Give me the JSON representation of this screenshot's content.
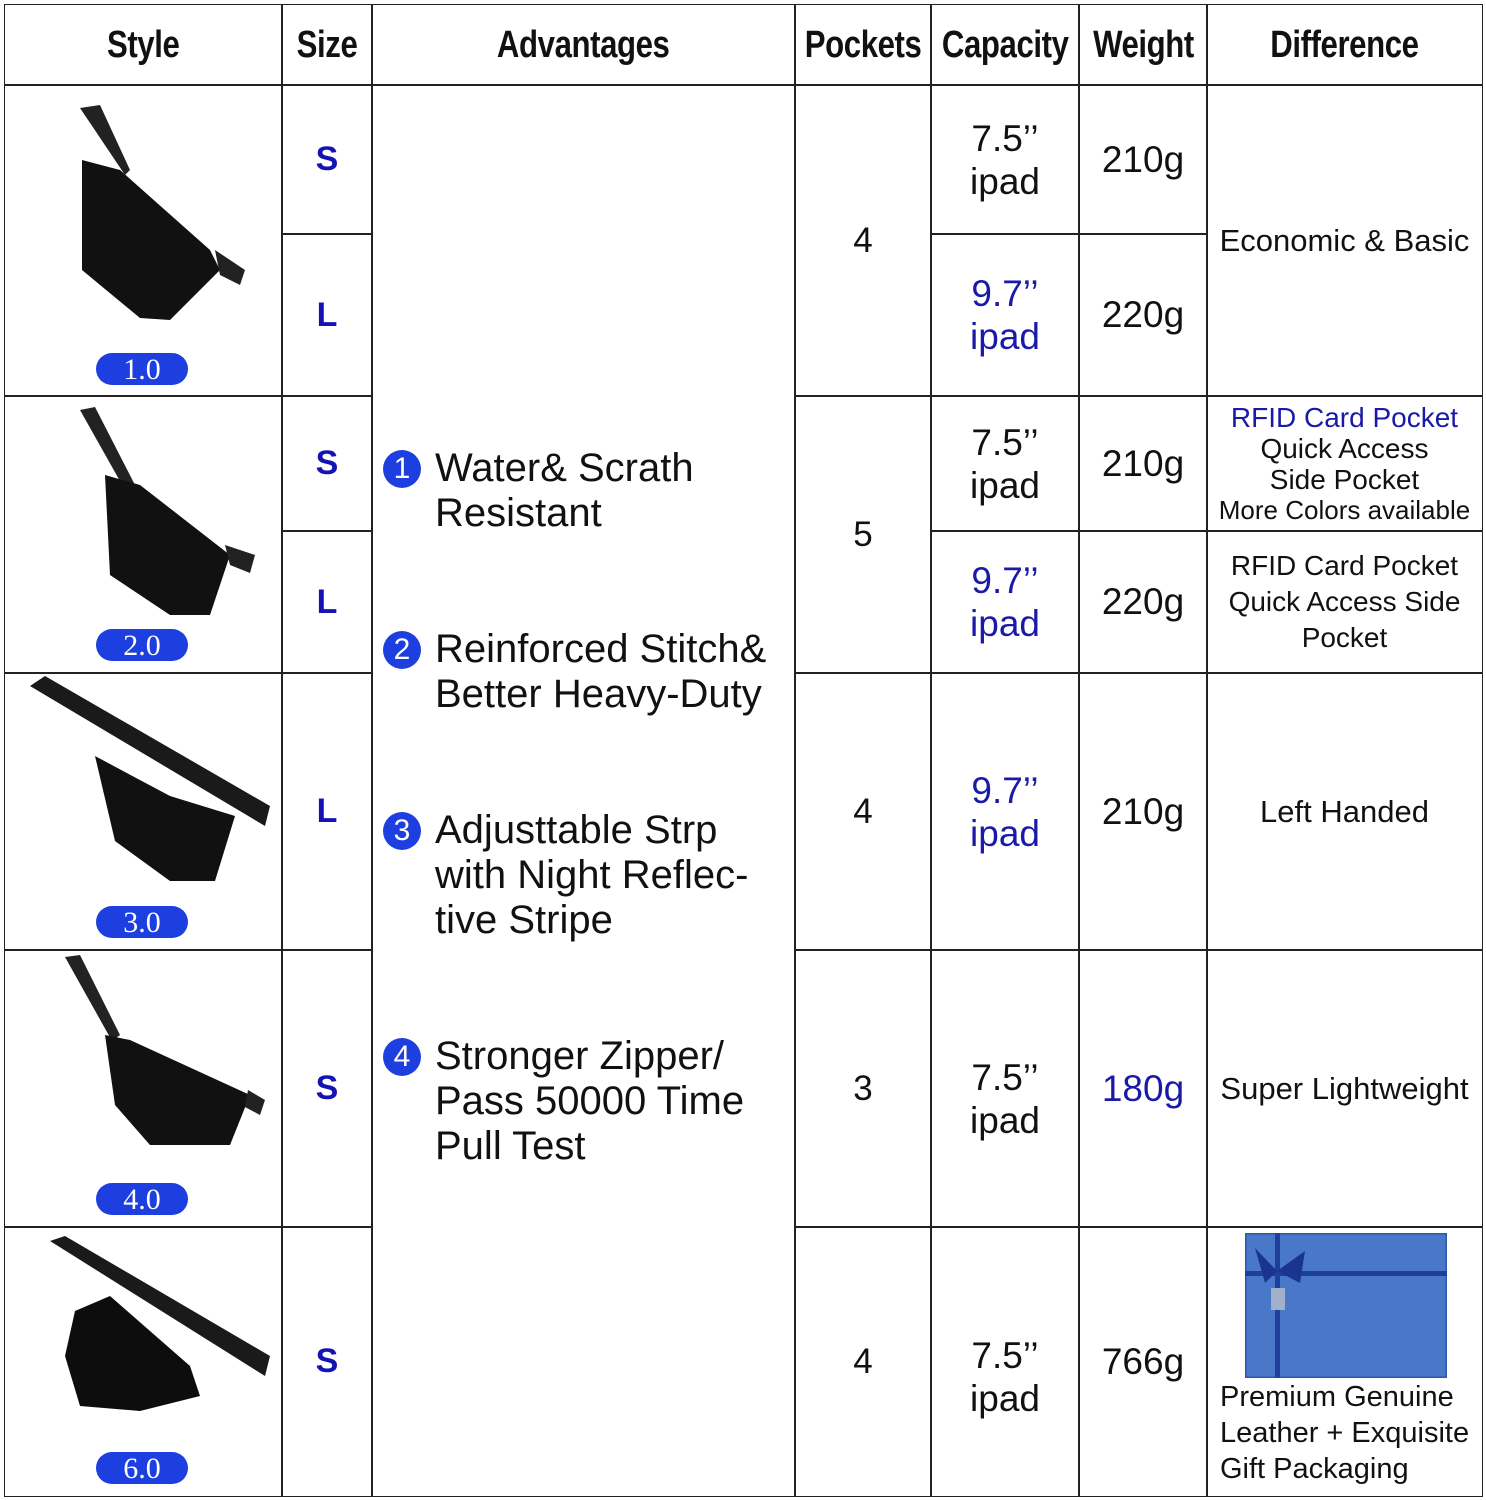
{
  "headers": {
    "style": "Style",
    "size": "Size",
    "advantages": "Advantages",
    "pockets": "Pockets",
    "capacity": "Capacity",
    "weight": "Weight",
    "difference": "Difference"
  },
  "versions": [
    "1.0",
    "2.0",
    "3.0",
    "4.0",
    "6.0"
  ],
  "sizes": [
    "S",
    "L",
    "S",
    "L",
    "L",
    "S",
    "S"
  ],
  "pockets": [
    "4",
    "5",
    "4",
    "3",
    "4"
  ],
  "capacities": [
    {
      "size": "7.5’’",
      "device": "ipad",
      "highlight": false
    },
    {
      "size": "9.7’’",
      "device": "ipad",
      "highlight": true
    },
    {
      "size": "7.5’’",
      "device": "ipad",
      "highlight": false
    },
    {
      "size": "9.7’’",
      "device": "ipad",
      "highlight": true
    },
    {
      "size": "9.7’’",
      "device": "ipad",
      "highlight": true
    },
    {
      "size": "7.5’’",
      "device": "ipad",
      "highlight": false
    },
    {
      "size": "7.5’’",
      "device": "ipad",
      "highlight": false
    }
  ],
  "weights": [
    "210g",
    "220g",
    "210g",
    "220g",
    "210g",
    "180g",
    "766g"
  ],
  "differences": {
    "d1": "Economic & Basic",
    "d2": [
      "RFID Card Pocket",
      "Quick Access",
      "Side Pocket",
      "More Colors available"
    ],
    "d3": [
      "RFID Card Pocket",
      "Quick Access Side",
      "Pocket"
    ],
    "d4": "Left Handed",
    "d5": "Super Lightweight",
    "d6": [
      "Premium Genuine",
      "Leather + Exquisite",
      "Gift Packaging"
    ]
  },
  "advantages": [
    {
      "num": "1",
      "lines": [
        "Water& Scrath",
        "Resistant"
      ]
    },
    {
      "num": "2",
      "lines": [
        "Reinforced Stitch&",
        "Better Heavy-Duty"
      ]
    },
    {
      "num": "3",
      "lines": [
        "Adjusttable Strp",
        "with Night Reflec-",
        "tive Stripe"
      ]
    },
    {
      "num": "4",
      "lines": [
        "Stronger Zipper/",
        "Pass 50000 Time",
        "Pull Test"
      ]
    }
  ],
  "colors": {
    "accent": "#1d3fe0",
    "highlight_text": "#1a1aa8",
    "gift_box": "#4a78c8"
  }
}
